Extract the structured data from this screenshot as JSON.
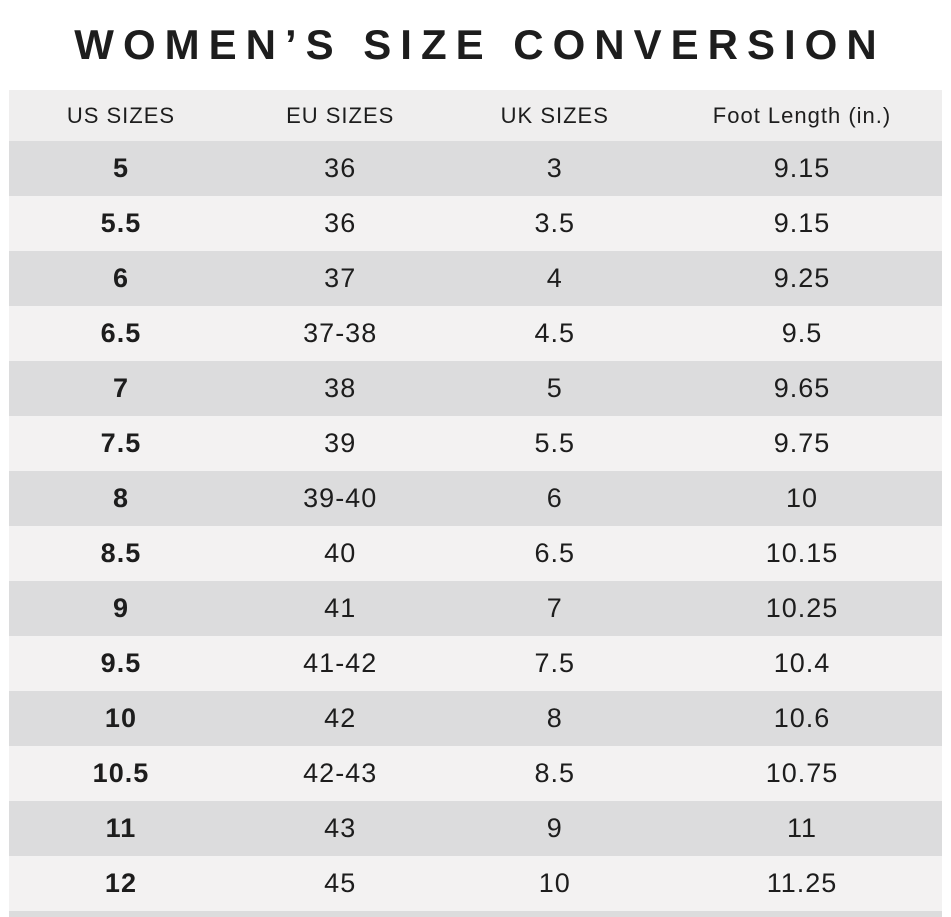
{
  "title": "WOMEN’S SIZE CONVERSION",
  "table": {
    "columns": [
      "US SIZES",
      "EU SIZES",
      "UK SIZES",
      "Foot Length (in.)"
    ],
    "rows": [
      {
        "us": "5",
        "eu": "36",
        "uk": "3",
        "foot": "9.15"
      },
      {
        "us": "5.5",
        "eu": "36",
        "uk": "3.5",
        "foot": "9.15"
      },
      {
        "us": "6",
        "eu": "37",
        "uk": "4",
        "foot": "9.25"
      },
      {
        "us": "6.5",
        "eu": "37-38",
        "uk": "4.5",
        "foot": "9.5"
      },
      {
        "us": "7",
        "eu": "38",
        "uk": "5",
        "foot": "9.65"
      },
      {
        "us": "7.5",
        "eu": "39",
        "uk": "5.5",
        "foot": "9.75"
      },
      {
        "us": "8",
        "eu": "39-40",
        "uk": "6",
        "foot": "10"
      },
      {
        "us": "8.5",
        "eu": "40",
        "uk": "6.5",
        "foot": "10.15"
      },
      {
        "us": "9",
        "eu": "41",
        "uk": "7",
        "foot": "10.25"
      },
      {
        "us": "9.5",
        "eu": "41-42",
        "uk": "7.5",
        "foot": "10.4"
      },
      {
        "us": "10",
        "eu": "42",
        "uk": "8",
        "foot": "10.6"
      },
      {
        "us": "10.5",
        "eu": "42-43",
        "uk": "8.5",
        "foot": "10.75"
      },
      {
        "us": "11",
        "eu": "43",
        "uk": "9",
        "foot": "11"
      },
      {
        "us": "12",
        "eu": "45",
        "uk": "10",
        "foot": "11.25"
      }
    ]
  },
  "colors": {
    "page_bg": "#ffffff",
    "header_bg": "#efeeee",
    "row_dark": "#dcdcdd",
    "row_light": "#f3f2f2",
    "text": "#1d1d1d"
  }
}
